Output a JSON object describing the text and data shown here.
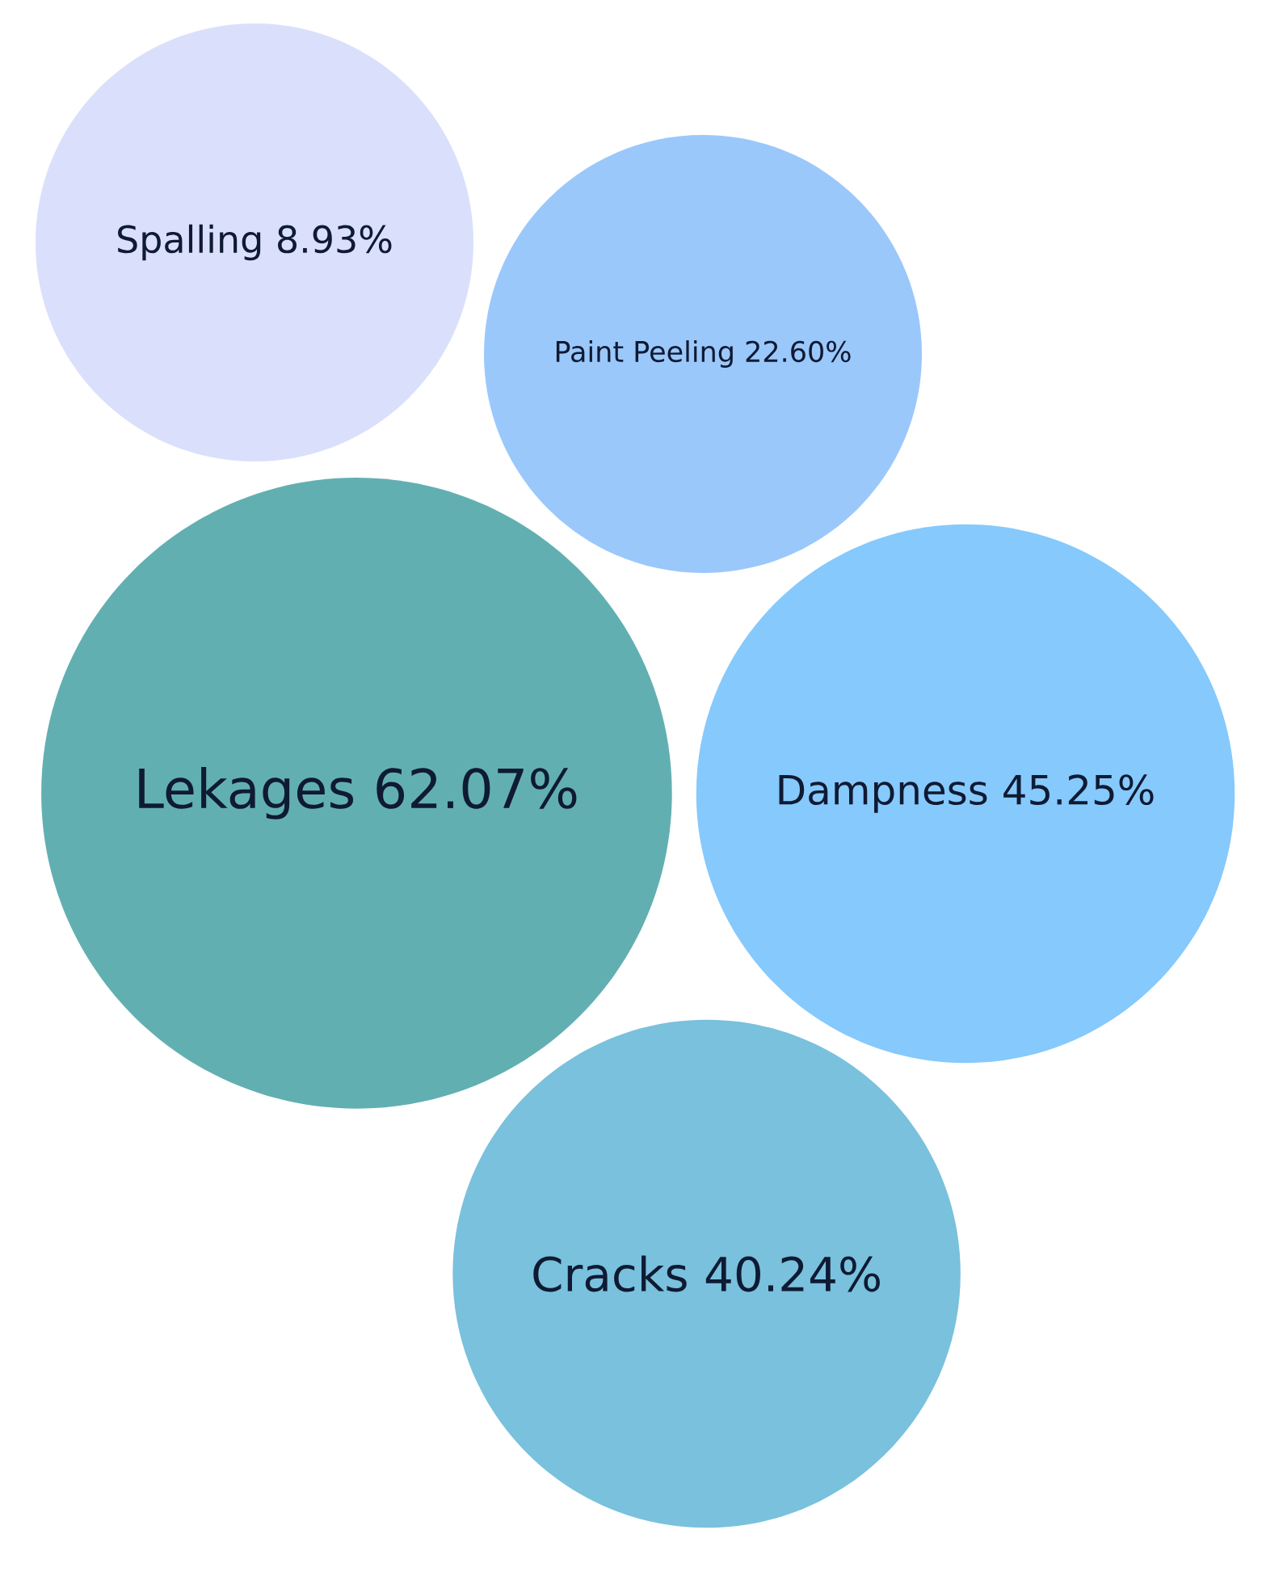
{
  "chart_data": {
    "type": "other",
    "categories": [
      "Spalling",
      "Paint Peeling",
      "Lekages",
      "Dampness",
      "Cracks"
    ],
    "values": [
      8.93,
      22.6,
      62.07,
      45.25,
      40.24
    ],
    "value_labels": [
      "8.93%",
      "22.60%",
      "62.07%",
      "45.25%",
      "40.24%"
    ],
    "colors": [
      "#dae0fb",
      "#9bc8fb",
      "#62afb2",
      "#86c9fc",
      "#79c1dd"
    ]
  }
}
